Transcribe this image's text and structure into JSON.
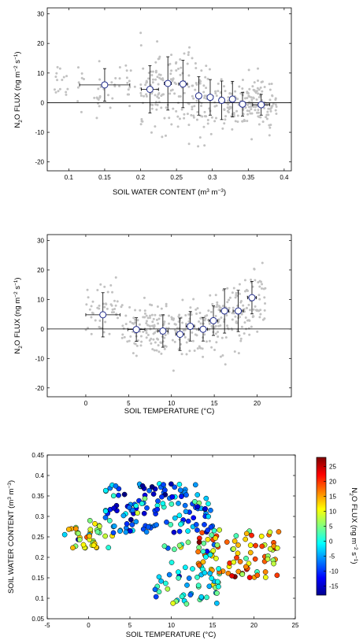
{
  "chart_data": [
    {
      "type": "scatter",
      "xlabel": "SOIL WATER CONTENT (m3 m-3)",
      "ylabel": "N2O FLUX (ng m-2 s-1)",
      "xlim": [
        0.07,
        0.41
      ],
      "ylim": [
        -23,
        32
      ],
      "xticks": [
        "0.1",
        "0.15",
        "0.2",
        "0.25",
        "0.3",
        "0.35",
        "0.4"
      ],
      "yticks": [
        "-20",
        "-10",
        "0",
        "10",
        "20",
        "30"
      ],
      "zero_line": true,
      "scatter_color": "#c2c2c2",
      "marker_color": "#1f2a8c",
      "binned_means": [
        {
          "x": 0.15,
          "y": 6.0,
          "xerr": 0.035,
          "yerr": 5.5
        },
        {
          "x": 0.213,
          "y": 4.5,
          "xerr": 0.012,
          "yerr": 8.0
        },
        {
          "x": 0.238,
          "y": 6.5,
          "xerr": 0.005,
          "yerr": 9.0
        },
        {
          "x": 0.259,
          "y": 6.3,
          "xerr": 0.006,
          "yerr": 8.0
        },
        {
          "x": 0.281,
          "y": 2.3,
          "xerr": 0.004,
          "yerr": 6.5
        },
        {
          "x": 0.297,
          "y": 1.8,
          "xerr": 0.004,
          "yerr": 6.0
        },
        {
          "x": 0.313,
          "y": 0.8,
          "xerr": 0.004,
          "yerr": 6.5
        },
        {
          "x": 0.328,
          "y": 1.2,
          "xerr": 0.004,
          "yerr": 6.0
        },
        {
          "x": 0.342,
          "y": -0.5,
          "xerr": 0.004,
          "yerr": 4.0
        },
        {
          "x": 0.368,
          "y": -0.7,
          "xerr": 0.012,
          "yerr": 3.5
        }
      ]
    },
    {
      "type": "scatter",
      "xlabel": "SOIL TEMPERATURE (°C)",
      "ylabel": "N2O FLUX (ng m-2 s-1)",
      "xlim": [
        -4.5,
        24
      ],
      "ylim": [
        -23,
        32
      ],
      "xticks": [
        "0",
        "5",
        "10",
        "15",
        "20"
      ],
      "yticks": [
        "-20",
        "-10",
        "0",
        "10",
        "20",
        "30"
      ],
      "zero_line": true,
      "scatter_color": "#c2c2c2",
      "marker_color": "#1f2a8c",
      "binned_means": [
        {
          "x": 2.0,
          "y": 4.8,
          "xerr": 2.0,
          "yerr": 7.5
        },
        {
          "x": 5.9,
          "y": -0.2,
          "xerr": 1.0,
          "yerr": 4.0
        },
        {
          "x": 9.0,
          "y": -0.7,
          "xerr": 0.6,
          "yerr": 5.5
        },
        {
          "x": 11.0,
          "y": -1.8,
          "xerr": 0.5,
          "yerr": 5.5
        },
        {
          "x": 12.2,
          "y": 0.9,
          "xerr": 0.5,
          "yerr": 5.0
        },
        {
          "x": 13.7,
          "y": -0.1,
          "xerr": 0.5,
          "yerr": 4.0
        },
        {
          "x": 14.9,
          "y": 2.8,
          "xerr": 0.5,
          "yerr": 5.0
        },
        {
          "x": 16.2,
          "y": 6.1,
          "xerr": 0.5,
          "yerr": 7.5
        },
        {
          "x": 17.8,
          "y": 6.1,
          "xerr": 0.6,
          "yerr": 7.0
        },
        {
          "x": 19.4,
          "y": 10.6,
          "xerr": 0.5,
          "yerr": 5.5
        }
      ]
    },
    {
      "type": "scatter",
      "xlabel": "SOIL TEMPERATURE (°C)",
      "ylabel": "SOIL WATER CONTENT (m3 m-3)",
      "xlim": [
        -5,
        25
      ],
      "ylim": [
        0.05,
        0.45
      ],
      "xticks": [
        "-5",
        "0",
        "5",
        "10",
        "15",
        "20",
        "25"
      ],
      "yticks": [
        "0.05",
        "0.1",
        "0.15",
        "0.2",
        "0.25",
        "0.3",
        "0.35",
        "0.4",
        "0.45"
      ],
      "colorbar": {
        "label": "N2O FLUX (ng m-2 s-1)",
        "range": [
          -18,
          28
        ],
        "ticks": [
          "-15",
          "-10",
          "-5",
          "0",
          "5",
          "10",
          "15",
          "20",
          "25"
        ],
        "colormap": "jet"
      }
    }
  ]
}
